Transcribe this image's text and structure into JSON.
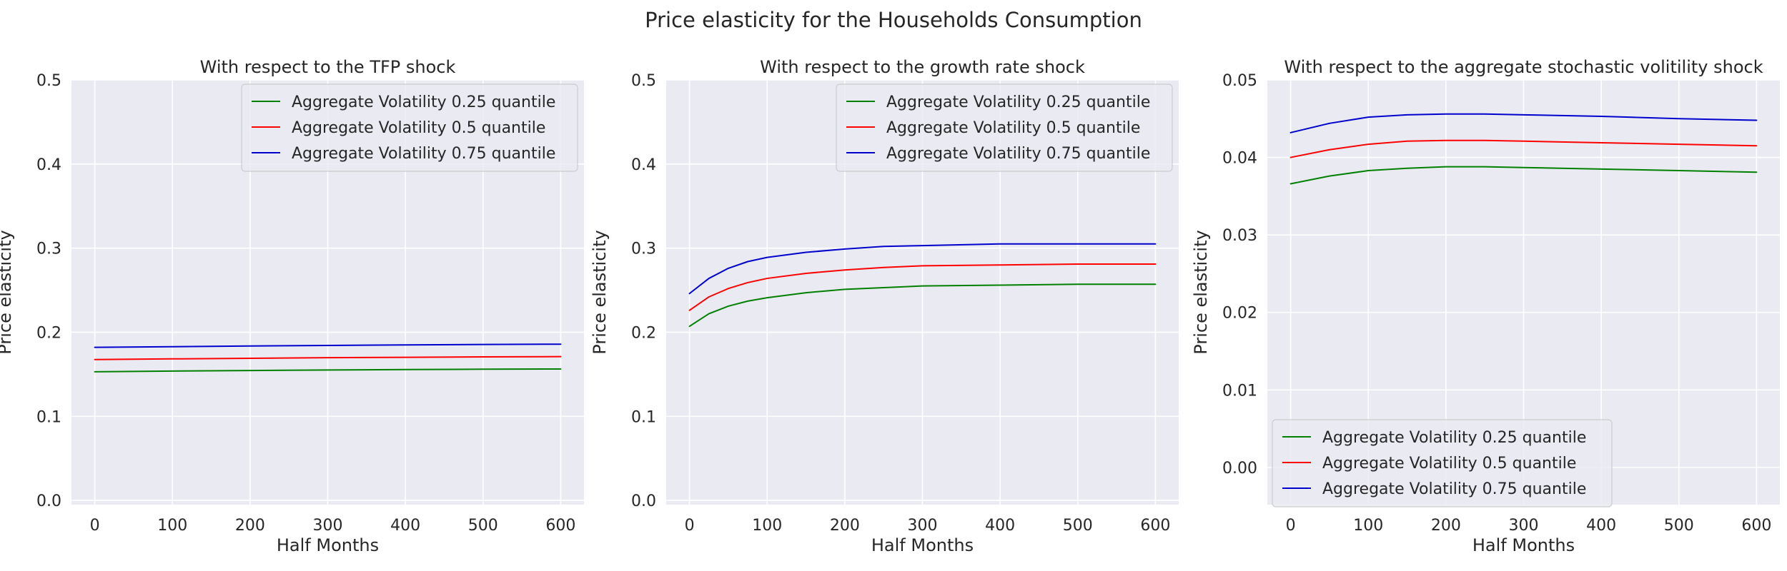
{
  "figure_title": "Price elasticity for the Households Consumption",
  "colors": {
    "background": "#ffffff",
    "plot_bg": "#eaeaf2",
    "grid": "#ffffff",
    "text": "#262626",
    "legend_bg": "#eaeaf2",
    "legend_border": "#cccccc"
  },
  "chart_data": [
    {
      "type": "line",
      "title": "With respect to the TFP shock",
      "xlabel": "Half Months",
      "ylabel": "Price elasticity",
      "xlim": [
        -30,
        630
      ],
      "ylim": [
        -0.005,
        0.5
      ],
      "xticks": [
        0,
        100,
        200,
        300,
        400,
        500,
        600
      ],
      "xtick_labels": [
        "0",
        "100",
        "200",
        "300",
        "400",
        "500",
        "600"
      ],
      "yticks": [
        0.0,
        0.1,
        0.2,
        0.3,
        0.4,
        0.5
      ],
      "ytick_labels": [
        "0.0",
        "0.1",
        "0.2",
        "0.3",
        "0.4",
        "0.5"
      ],
      "grid": true,
      "legend_position": "upper right",
      "series": [
        {
          "name": "Aggregate Volatility 0.25 quantile",
          "color": "#008000",
          "x": [
            0,
            100,
            200,
            300,
            400,
            500,
            600
          ],
          "y": [
            0.153,
            0.1538,
            0.1545,
            0.1551,
            0.1556,
            0.156,
            0.1563
          ]
        },
        {
          "name": "Aggregate Volatility 0.5 quantile",
          "color": "#ff0000",
          "x": [
            0,
            100,
            200,
            300,
            400,
            500,
            600
          ],
          "y": [
            0.1675,
            0.1683,
            0.169,
            0.1697,
            0.1702,
            0.1707,
            0.171
          ]
        },
        {
          "name": "Aggregate Volatility 0.75 quantile",
          "color": "#0000cd",
          "x": [
            0,
            100,
            200,
            300,
            400,
            500,
            600
          ],
          "y": [
            0.182,
            0.1828,
            0.1836,
            0.1843,
            0.1849,
            0.1854,
            0.1858
          ]
        }
      ]
    },
    {
      "type": "line",
      "title": "With respect to the growth rate shock",
      "xlabel": "Half Months",
      "ylabel": "Price elasticity",
      "xlim": [
        -30,
        630
      ],
      "ylim": [
        -0.005,
        0.5
      ],
      "xticks": [
        0,
        100,
        200,
        300,
        400,
        500,
        600
      ],
      "xtick_labels": [
        "0",
        "100",
        "200",
        "300",
        "400",
        "500",
        "600"
      ],
      "yticks": [
        0.0,
        0.1,
        0.2,
        0.3,
        0.4,
        0.5
      ],
      "ytick_labels": [
        "0.0",
        "0.1",
        "0.2",
        "0.3",
        "0.4",
        "0.5"
      ],
      "grid": true,
      "legend_position": "upper right",
      "series": [
        {
          "name": "Aggregate Volatility 0.25 quantile",
          "color": "#008000",
          "x": [
            0,
            25,
            50,
            75,
            100,
            150,
            200,
            250,
            300,
            400,
            500,
            600
          ],
          "y": [
            0.207,
            0.222,
            0.231,
            0.237,
            0.241,
            0.247,
            0.251,
            0.253,
            0.255,
            0.256,
            0.257,
            0.257
          ]
        },
        {
          "name": "Aggregate Volatility 0.5 quantile",
          "color": "#ff0000",
          "x": [
            0,
            25,
            50,
            75,
            100,
            150,
            200,
            250,
            300,
            400,
            500,
            600
          ],
          "y": [
            0.226,
            0.242,
            0.252,
            0.259,
            0.264,
            0.27,
            0.274,
            0.277,
            0.279,
            0.28,
            0.281,
            0.281
          ]
        },
        {
          "name": "Aggregate Volatility 0.75 quantile",
          "color": "#0000cd",
          "x": [
            0,
            25,
            50,
            75,
            100,
            150,
            200,
            250,
            300,
            400,
            500,
            600
          ],
          "y": [
            0.246,
            0.264,
            0.276,
            0.284,
            0.289,
            0.295,
            0.299,
            0.302,
            0.303,
            0.305,
            0.305,
            0.305
          ]
        }
      ]
    },
    {
      "type": "line",
      "title": "With respect to the aggregate stochastic volitility shock",
      "xlabel": "Half Months",
      "ylabel": "Price elasticity",
      "xlim": [
        -30,
        630
      ],
      "ylim": [
        -0.0048,
        0.05
      ],
      "xticks": [
        0,
        100,
        200,
        300,
        400,
        500,
        600
      ],
      "xtick_labels": [
        "0",
        "100",
        "200",
        "300",
        "400",
        "500",
        "600"
      ],
      "yticks": [
        0.0,
        0.01,
        0.02,
        0.03,
        0.04,
        0.05
      ],
      "ytick_labels": [
        "0.00",
        "0.01",
        "0.02",
        "0.03",
        "0.04",
        "0.05"
      ],
      "grid": true,
      "legend_position": "lower left",
      "series": [
        {
          "name": "Aggregate Volatility 0.25 quantile",
          "color": "#008000",
          "x": [
            0,
            50,
            100,
            150,
            200,
            250,
            300,
            400,
            500,
            600
          ],
          "y": [
            0.0366,
            0.0376,
            0.0383,
            0.0386,
            0.0388,
            0.0388,
            0.0387,
            0.0385,
            0.0383,
            0.0381
          ]
        },
        {
          "name": "Aggregate Volatility 0.5 quantile",
          "color": "#ff0000",
          "x": [
            0,
            50,
            100,
            150,
            200,
            250,
            300,
            400,
            500,
            600
          ],
          "y": [
            0.04,
            0.041,
            0.0417,
            0.0421,
            0.0422,
            0.0422,
            0.0421,
            0.0419,
            0.0417,
            0.0415
          ]
        },
        {
          "name": "Aggregate Volatility 0.75 quantile",
          "color": "#0000cd",
          "x": [
            0,
            50,
            100,
            150,
            200,
            250,
            300,
            400,
            500,
            600
          ],
          "y": [
            0.0432,
            0.0444,
            0.0452,
            0.0455,
            0.0456,
            0.0456,
            0.0455,
            0.0453,
            0.045,
            0.0448
          ]
        }
      ]
    }
  ]
}
